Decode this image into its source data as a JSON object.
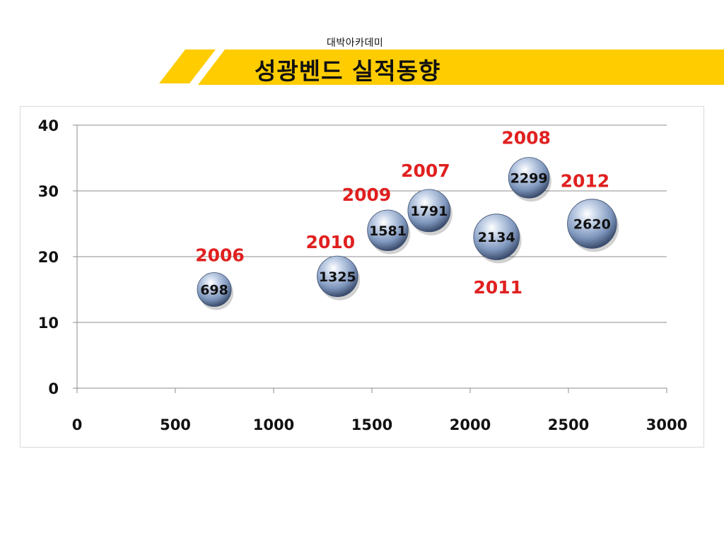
{
  "header": {
    "subtitle": "대박아카데미",
    "title": "성광벤드 실적동향",
    "accent_color": "#FFCC00"
  },
  "chart_data": {
    "type": "scatter",
    "title": "",
    "xlabel": "",
    "ylabel": "",
    "xlim": [
      0,
      3000
    ],
    "ylim": [
      0,
      40
    ],
    "x_ticks": [
      "0",
      "500",
      "1000",
      "1500",
      "2000",
      "2500",
      "3000"
    ],
    "y_ticks": [
      "0",
      "10",
      "20",
      "30",
      "40"
    ],
    "grid": "horizontal",
    "year_label_color": "#E02020",
    "bubble_color": "#8FA6C9",
    "points": [
      {
        "year": "2006",
        "x": 698,
        "y": 15,
        "label": "698",
        "size": 1.0
      },
      {
        "year": "2010",
        "x": 1325,
        "y": 17,
        "label": "1325",
        "size": 1.2
      },
      {
        "year": "2009",
        "x": 1581,
        "y": 24,
        "label": "1581",
        "size": 1.2
      },
      {
        "year": "2007",
        "x": 1791,
        "y": 27,
        "label": "1791",
        "size": 1.25
      },
      {
        "year": "2011",
        "x": 2134,
        "y": 23,
        "label": "2134",
        "size": 1.35
      },
      {
        "year": "2008",
        "x": 2299,
        "y": 32,
        "label": "2299",
        "size": 1.2
      },
      {
        "year": "2012",
        "x": 2620,
        "y": 25,
        "label": "2620",
        "size": 1.45
      }
    ]
  }
}
